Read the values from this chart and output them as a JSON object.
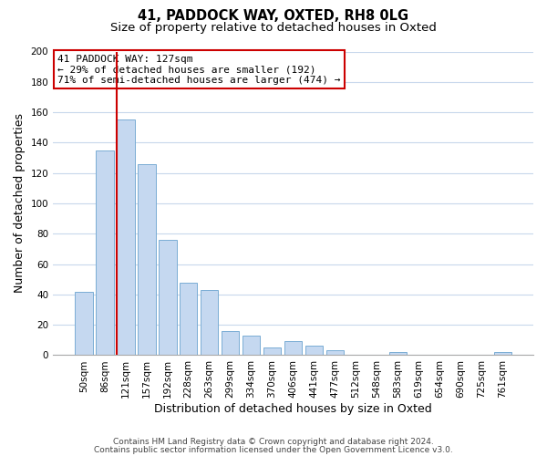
{
  "title1": "41, PADDOCK WAY, OXTED, RH8 0LG",
  "title2": "Size of property relative to detached houses in Oxted",
  "xlabel": "Distribution of detached houses by size in Oxted",
  "ylabel": "Number of detached properties",
  "bar_labels": [
    "50sqm",
    "86sqm",
    "121sqm",
    "157sqm",
    "192sqm",
    "228sqm",
    "263sqm",
    "299sqm",
    "334sqm",
    "370sqm",
    "406sqm",
    "441sqm",
    "477sqm",
    "512sqm",
    "548sqm",
    "583sqm",
    "619sqm",
    "654sqm",
    "690sqm",
    "725sqm",
    "761sqm"
  ],
  "bar_values": [
    42,
    135,
    155,
    126,
    76,
    48,
    43,
    16,
    13,
    5,
    9,
    6,
    3,
    0,
    0,
    2,
    0,
    0,
    0,
    0,
    2
  ],
  "bar_color": "#c5d8f0",
  "bar_edge_color": "#7aadd4",
  "vline_x_idx": 2,
  "vline_color": "#cc0000",
  "annotation_line1": "41 PADDOCK WAY: 127sqm",
  "annotation_line2": "← 29% of detached houses are smaller (192)",
  "annotation_line3": "71% of semi-detached houses are larger (474) →",
  "annotation_box_edge": "#cc0000",
  "ylim": [
    0,
    200
  ],
  "yticks": [
    0,
    20,
    40,
    60,
    80,
    100,
    120,
    140,
    160,
    180,
    200
  ],
  "footer1": "Contains HM Land Registry data © Crown copyright and database right 2024.",
  "footer2": "Contains public sector information licensed under the Open Government Licence v3.0.",
  "bg_color": "#ffffff",
  "grid_color": "#c8d8ec",
  "title_fontsize": 10.5,
  "subtitle_fontsize": 9.5,
  "axis_label_fontsize": 9,
  "tick_fontsize": 7.5,
  "annotation_fontsize": 8,
  "footer_fontsize": 6.5
}
